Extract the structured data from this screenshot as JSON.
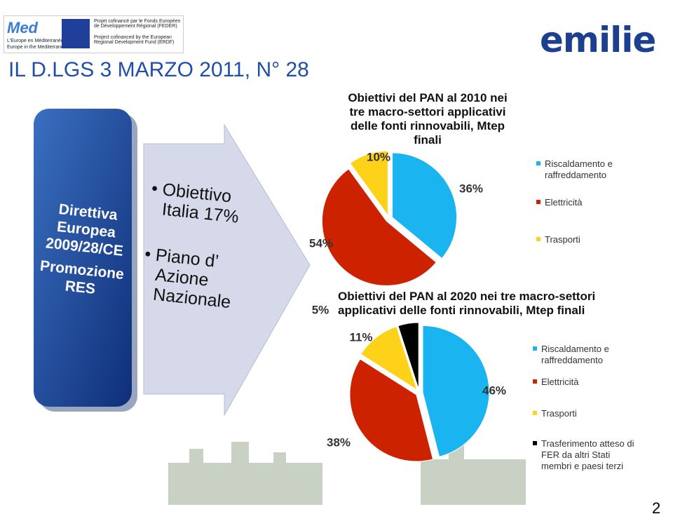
{
  "header": {
    "title": "IL D.LGS 3 MARZO 2011, N° 28",
    "logo_left": {
      "name": "Med",
      "lines": [
        "L'Europe en Méditerranée",
        "Europe in the Mediterranean"
      ],
      "funding": [
        "Projet cofinancé par le Fonds Européen de Développement Régional (FEDER)",
        "Project cofinanced by the European Regional Development Fund (ERDF)"
      ]
    },
    "logo_right": "emilie"
  },
  "box": {
    "lines": [
      "Direttiva Europea 2009/28/CE",
      "Promozione RES"
    ]
  },
  "arrow": {
    "bullets": [
      "Obiettivo Italia 17%",
      "Piano d’ Azione Nazionale"
    ]
  },
  "page_number": "2",
  "chart_data": [
    {
      "type": "pie",
      "title": "Obiettivi del PAN al 2010 nei tre macro-settori applicativi delle fonti rinnovabili, Mtep finali",
      "categories": [
        "Riscaldamento e raffreddamento",
        "Elettricità",
        "Trasporti"
      ],
      "values": [
        36,
        54,
        10
      ],
      "value_labels": [
        "36%",
        "54%",
        "10%"
      ],
      "colors": [
        "#1ab4f0",
        "#cc2200",
        "#ffd21a"
      ]
    },
    {
      "type": "pie",
      "title": "Obiettivi del PAN al 2020 nei tre macro-settori applicativi delle fonti rinnovabili, Mtep finali",
      "categories": [
        "Riscaldamento e raffreddamento",
        "Elettricità",
        "Trasporti",
        "Trasferimento atteso di FER da altri Stati membri e paesi terzi"
      ],
      "values": [
        46,
        38,
        11,
        5
      ],
      "value_labels": [
        "46%",
        "38%",
        "11%",
        "5%"
      ],
      "colors": [
        "#1ab4f0",
        "#cc2200",
        "#ffd21a",
        "#000000"
      ]
    }
  ]
}
